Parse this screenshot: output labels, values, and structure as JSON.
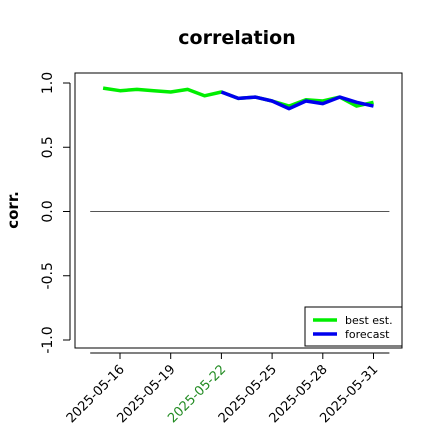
{
  "chart_data": {
    "type": "line",
    "title": "correlation",
    "xlabel": "",
    "ylabel": "corr.",
    "ylim": [
      -1.0,
      1.0
    ],
    "y_ticks": [
      -1.0,
      -0.5,
      0.0,
      0.5,
      1.0
    ],
    "y_tick_labels": [
      "-1.0",
      "-0.5",
      "0.0",
      "0.5",
      "1.0"
    ],
    "x_ticks": [
      "2025-05-16",
      "2025-05-19",
      "2025-05-22",
      "2025-05-25",
      "2025-05-28",
      "2025-05-31"
    ],
    "x_tick_colors": [
      "#000000",
      "#000000",
      "#228B22",
      "#000000",
      "#000000",
      "#000000"
    ],
    "x_range": [
      "2025-05-14",
      "2025-06-01"
    ],
    "reference_line": 0.0,
    "grid": false,
    "legend_position": "bottom-right",
    "series": [
      {
        "name": "best est.",
        "color": "#00ee00",
        "x": [
          "2025-05-15",
          "2025-05-16",
          "2025-05-17",
          "2025-05-18",
          "2025-05-19",
          "2025-05-20",
          "2025-05-21",
          "2025-05-22",
          "2025-05-23",
          "2025-05-24",
          "2025-05-25",
          "2025-05-26",
          "2025-05-27",
          "2025-05-28",
          "2025-05-29",
          "2025-05-30",
          "2025-05-31"
        ],
        "values": [
          0.96,
          0.94,
          0.95,
          0.94,
          0.93,
          0.95,
          0.9,
          0.93,
          0.88,
          0.89,
          0.86,
          0.82,
          0.87,
          0.86,
          0.89,
          0.82,
          0.85
        ]
      },
      {
        "name": "forecast",
        "color": "#0000ee",
        "x": [
          "2025-05-22",
          "2025-05-23",
          "2025-05-24",
          "2025-05-25",
          "2025-05-26",
          "2025-05-27",
          "2025-05-28",
          "2025-05-29",
          "2025-05-30",
          "2025-05-31"
        ],
        "values": [
          0.93,
          0.88,
          0.89,
          0.86,
          0.8,
          0.86,
          0.84,
          0.89,
          0.85,
          0.82
        ]
      }
    ]
  }
}
